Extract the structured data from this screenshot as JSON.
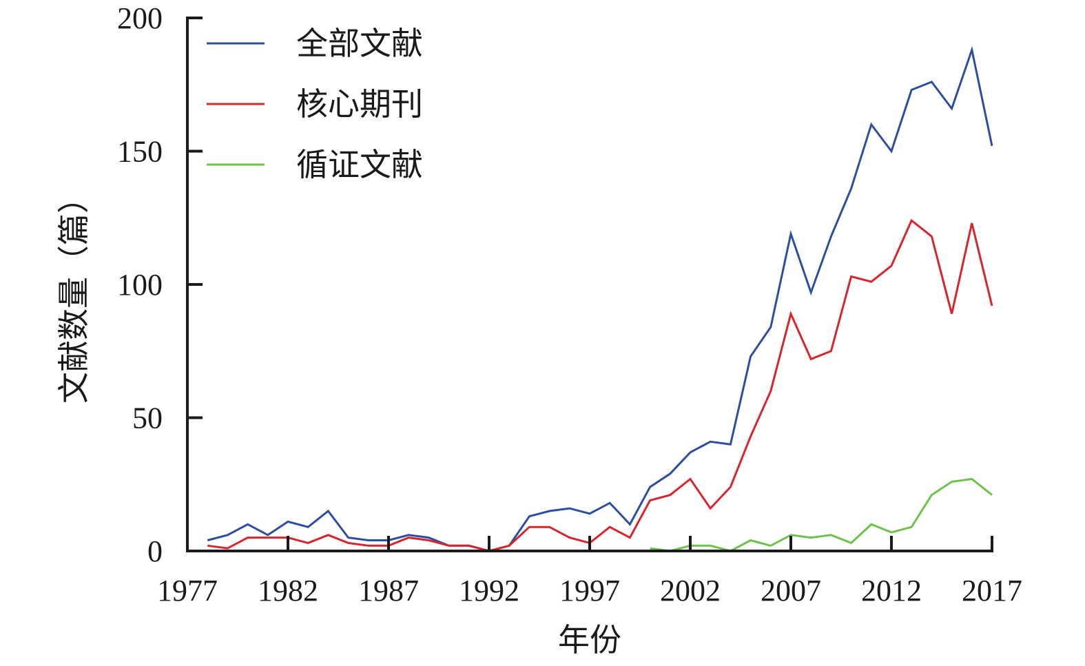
{
  "chart_data": {
    "type": "line",
    "xlabel": "年份",
    "ylabel": "文献数量（篇）",
    "xlim": [
      1977,
      2017
    ],
    "ylim": [
      0,
      200
    ],
    "xticks": [
      "1977",
      "1982",
      "1987",
      "1992",
      "1997",
      "2002",
      "2007",
      "2012",
      "2017"
    ],
    "yticks": [
      "0",
      "50",
      "100",
      "150",
      "200"
    ],
    "grid": false,
    "legend_position": "top-left",
    "series": [
      {
        "name": "全部文献",
        "color": "#2b4ea2",
        "x": [
          1978,
          1979,
          1980,
          1981,
          1982,
          1983,
          1984,
          1985,
          1986,
          1987,
          1988,
          1989,
          1990,
          1991,
          1992,
          1993,
          1994,
          1995,
          1996,
          1997,
          1998,
          1999,
          2000,
          2001,
          2002,
          2003,
          2004,
          2005,
          2006,
          2007,
          2008,
          2009,
          2010,
          2011,
          2012,
          2013,
          2014,
          2015,
          2016,
          2017
        ],
        "values": [
          4,
          6,
          10,
          6,
          11,
          9,
          15,
          5,
          4,
          4,
          6,
          5,
          2,
          2,
          0,
          2,
          13,
          15,
          16,
          14,
          18,
          10,
          24,
          29,
          37,
          41,
          40,
          73,
          84,
          119,
          97,
          118,
          136,
          160,
          150,
          173,
          176,
          166,
          188,
          152
        ]
      },
      {
        "name": "核心期刊",
        "color": "#d9242b",
        "x": [
          1978,
          1979,
          1980,
          1981,
          1982,
          1983,
          1984,
          1985,
          1986,
          1987,
          1988,
          1989,
          1990,
          1991,
          1992,
          1993,
          1994,
          1995,
          1996,
          1997,
          1998,
          1999,
          2000,
          2001,
          2002,
          2003,
          2004,
          2005,
          2006,
          2007,
          2008,
          2009,
          2010,
          2011,
          2012,
          2013,
          2014,
          2015,
          2016,
          2017
        ],
        "values": [
          2,
          1,
          5,
          5,
          5,
          3,
          6,
          3,
          2,
          2,
          5,
          4,
          2,
          2,
          0,
          2,
          9,
          9,
          5,
          3,
          9,
          5,
          19,
          21,
          27,
          16,
          24,
          43,
          60,
          89,
          72,
          75,
          103,
          101,
          107,
          124,
          118,
          89,
          123,
          92
        ]
      },
      {
        "name": "循证文献",
        "color": "#6cc24a",
        "x": [
          2000,
          2001,
          2002,
          2003,
          2004,
          2005,
          2006,
          2007,
          2008,
          2009,
          2010,
          2011,
          2012,
          2013,
          2014,
          2015,
          2016,
          2017
        ],
        "values": [
          1,
          0,
          2,
          2,
          0,
          4,
          2,
          6,
          5,
          6,
          3,
          10,
          7,
          9,
          21,
          26,
          27,
          21
        ]
      }
    ]
  }
}
